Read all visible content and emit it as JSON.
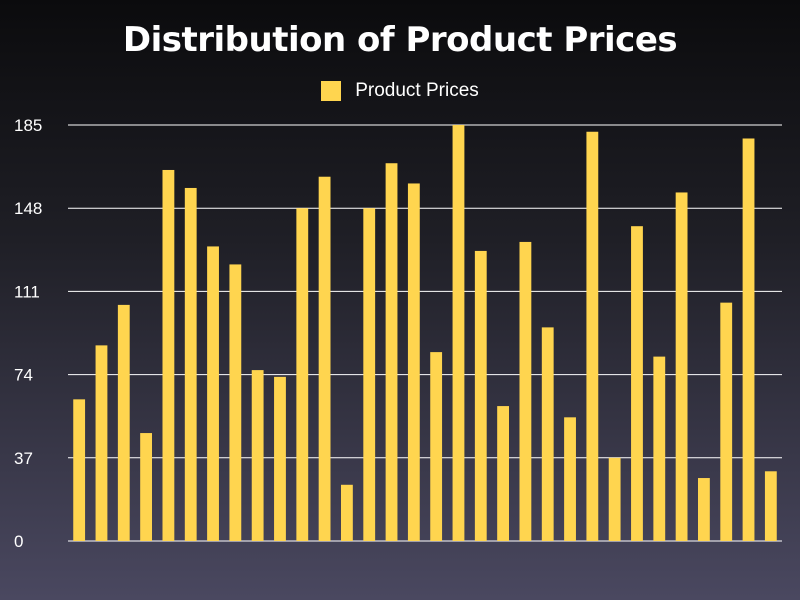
{
  "chart_data": {
    "type": "bar",
    "title": "Distribution of Product Prices",
    "xlabel": "",
    "ylabel": "",
    "ylim": [
      0,
      185
    ],
    "yticks": [
      0,
      37,
      74,
      111,
      148,
      185
    ],
    "grid": true,
    "legend_position": "top-center",
    "series": [
      {
        "name": "Product Prices",
        "color": "#ffd54f",
        "values": [
          63,
          87,
          105,
          48,
          165,
          157,
          131,
          123,
          76,
          73,
          148,
          162,
          25,
          148,
          168,
          159,
          84,
          185,
          129,
          60,
          133,
          95,
          55,
          182,
          37,
          140,
          82,
          155,
          28,
          106,
          179,
          31
        ]
      }
    ]
  },
  "colors": {
    "gridline": "#ffffff",
    "bar": "#ffd54f"
  }
}
